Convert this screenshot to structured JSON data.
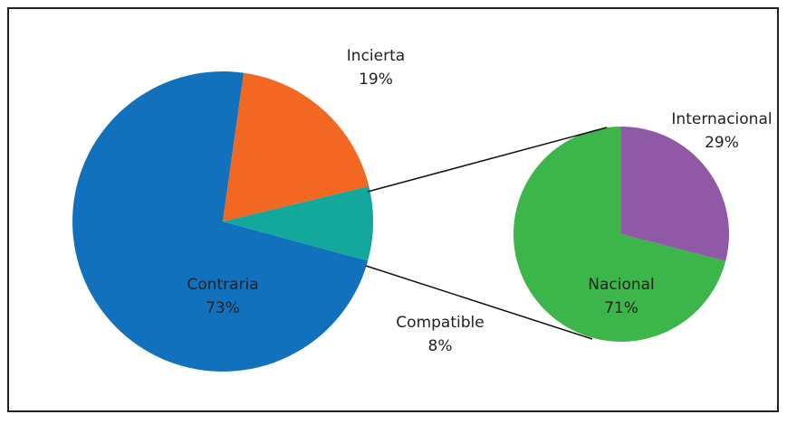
{
  "chart_data": [
    {
      "type": "pie",
      "categories": [
        "Contraria",
        "Incierta",
        "Compatible"
      ],
      "values": [
        73,
        19,
        8
      ],
      "value_labels": [
        "73%",
        "19%",
        "8%"
      ],
      "colors": [
        "#1271bd",
        "#f26822",
        "#12a89c"
      ]
    },
    {
      "type": "pie",
      "categories": [
        "Nacional",
        "Internacional"
      ],
      "values": [
        71,
        29
      ],
      "value_labels": [
        "71%",
        "29%"
      ],
      "colors": [
        "#3cb54a",
        "#8f59a6"
      ]
    }
  ]
}
